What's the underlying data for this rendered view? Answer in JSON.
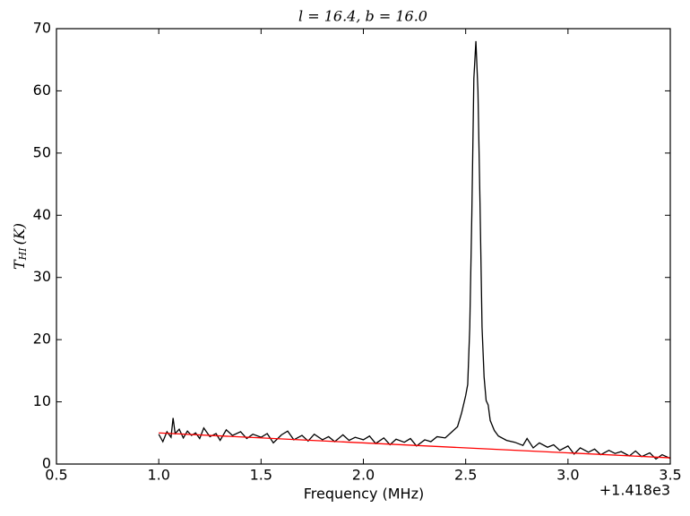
{
  "chart_data": {
    "type": "line",
    "title": "l = 16.4, b = 16.0",
    "xlabel": "Frequency (MHz)",
    "ylabel": {
      "main": "T",
      "sub": "HI",
      "unit": "(K)"
    },
    "x_offset_label": "+1.418e3",
    "xlim": [
      0.5,
      3.5
    ],
    "xticks": [
      0.5,
      {
        "value": 1,
        "label": "1.0"
      },
      1.5,
      {
        "value": 2,
        "label": "2.0"
      },
      2.5,
      {
        "value": 3,
        "label": "3.0"
      },
      3.5
    ],
    "ylim": [
      0,
      70
    ],
    "yticks": [
      0,
      10,
      20,
      30,
      40,
      50,
      60,
      70
    ],
    "grid": false,
    "series": [
      {
        "color": "#000000",
        "x": [
          1.0,
          1.02,
          1.04,
          1.06,
          1.07,
          1.08,
          1.1,
          1.12,
          1.14,
          1.16,
          1.18,
          1.2,
          1.22,
          1.25,
          1.28,
          1.3,
          1.33,
          1.36,
          1.4,
          1.43,
          1.46,
          1.5,
          1.53,
          1.56,
          1.6,
          1.63,
          1.66,
          1.7,
          1.73,
          1.76,
          1.8,
          1.83,
          1.86,
          1.9,
          1.93,
          1.96,
          2.0,
          2.03,
          2.06,
          2.1,
          2.13,
          2.16,
          2.2,
          2.23,
          2.26,
          2.3,
          2.33,
          2.36,
          2.4,
          2.43,
          2.46,
          2.48,
          2.5,
          2.51,
          2.52,
          2.53,
          2.54,
          2.55,
          2.56,
          2.57,
          2.58,
          2.59,
          2.6,
          2.61,
          2.62,
          2.64,
          2.66,
          2.7,
          2.74,
          2.78,
          2.8,
          2.83,
          2.86,
          2.9,
          2.93,
          2.96,
          3.0,
          3.03,
          3.06,
          3.1,
          3.13,
          3.16,
          3.2,
          3.23,
          3.26,
          3.3,
          3.33,
          3.36,
          3.4,
          3.43,
          3.46,
          3.5
        ],
        "values": [
          4.8,
          3.6,
          5.2,
          4.3,
          7.4,
          4.9,
          5.6,
          4.2,
          5.3,
          4.6,
          5.0,
          4.1,
          5.8,
          4.4,
          4.9,
          3.8,
          5.5,
          4.6,
          5.2,
          4.1,
          4.8,
          4.3,
          4.9,
          3.4,
          4.7,
          5.3,
          3.9,
          4.6,
          3.7,
          4.8,
          3.9,
          4.4,
          3.6,
          4.7,
          3.8,
          4.3,
          3.9,
          4.5,
          3.3,
          4.2,
          3.1,
          4.0,
          3.5,
          4.1,
          2.9,
          3.9,
          3.6,
          4.4,
          4.2,
          5.1,
          6.0,
          8.2,
          11.0,
          12.8,
          22.0,
          40.0,
          62.0,
          68.0,
          60.0,
          42.0,
          22.0,
          14.0,
          10.2,
          9.5,
          7.0,
          5.4,
          4.5,
          3.8,
          3.5,
          3.0,
          4.1,
          2.6,
          3.4,
          2.7,
          3.1,
          2.2,
          2.9,
          1.6,
          2.6,
          1.9,
          2.4,
          1.5,
          2.2,
          1.7,
          2.0,
          1.3,
          2.1,
          1.2,
          1.8,
          0.8,
          1.5,
          0.9
        ]
      },
      {
        "color": "#ff0000",
        "x": [
          1.0,
          3.5
        ],
        "values": [
          5.0,
          1.0
        ]
      }
    ]
  }
}
